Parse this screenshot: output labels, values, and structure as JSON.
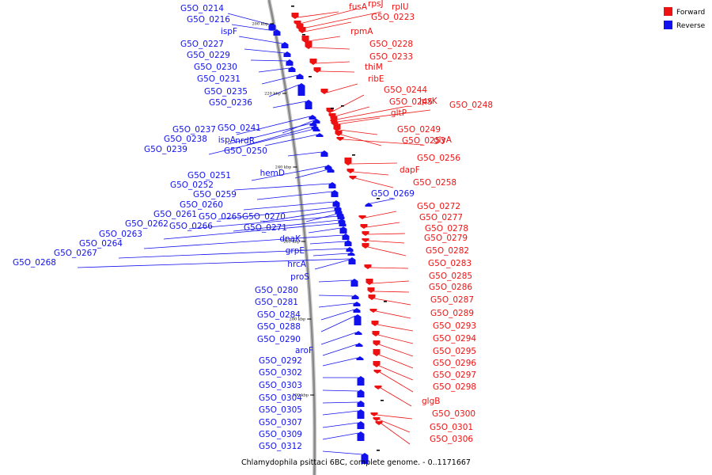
{
  "caption": "Chlamydophila psittaci 6BC, complete genome. - 0..1171667",
  "legend": [
    {
      "label": "Forward",
      "color": "#ee1111"
    },
    {
      "label": "Reverse",
      "color": "#1111ee"
    }
  ],
  "colors": {
    "forward": "#ee1111",
    "reverse": "#1111ee",
    "backbone": "#888888",
    "tick": "#000000"
  },
  "scale_ticks": [
    "200 kbp",
    "220 kbp",
    "240 kbp",
    "260 kbp",
    "280 kbp",
    "300 kbp"
  ],
  "reverse_labels": [
    "G5O_0214",
    "G5O_0216",
    "ispF",
    "G5O_0227",
    "G5O_0229",
    "G5O_0230",
    "G5O_0231",
    "G5O_0235",
    "G5O_0236",
    "G5O_0237",
    "G5O_0241",
    "G5O_0238",
    "ispA",
    "G5O_0239",
    "nrdR",
    "G5O_0250",
    "G5O_0251",
    "hemD",
    "G5O_0252",
    "G5O_0259",
    "G5O_0260",
    "G5O_0261",
    "G5O_0265",
    "G5O_0270",
    "G5O_0262",
    "G5O_0266",
    "G5O_0263",
    "G5O_0271",
    "G5O_0264",
    "dnaK",
    "G5O_0267",
    "grpE",
    "G5O_0268",
    "hrcA",
    "proS",
    "G5O_0280",
    "G5O_0281",
    "G5O_0284",
    "G5O_0288",
    "G5O_0290",
    "aroF",
    "G5O_0292",
    "G5O_0302",
    "G5O_0303",
    "G5O_0304",
    "G5O_0305",
    "G5O_0307",
    "G5O_0309",
    "G5O_0312",
    "G5O_0269"
  ],
  "forward_labels": [
    "fusA",
    "rpsJ",
    "rplU",
    "G5O_0223",
    "rpmA",
    "G5O_0228",
    "G5O_0233",
    "thiM",
    "ribE",
    "G5O_0244",
    "G5O_0245",
    "lpxK",
    "G5O_0248",
    "gltP",
    "G5O_0249",
    "G5O_0253",
    "glyA",
    "G5O_0256",
    "dapF",
    "G5O_0258",
    "G5O_0272",
    "G5O_0277",
    "G5O_0278",
    "G5O_0279",
    "G5O_0282",
    "G5O_0283",
    "G5O_0285",
    "G5O_0286",
    "G5O_0287",
    "G5O_0289",
    "G5O_0293",
    "G5O_0294",
    "G5O_0295",
    "G5O_0296",
    "G5O_0297",
    "G5O_0298",
    "glgB",
    "G5O_0300",
    "G5O_0301",
    "G5O_0306"
  ]
}
